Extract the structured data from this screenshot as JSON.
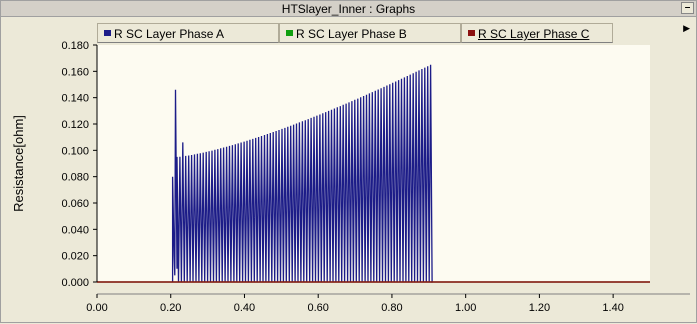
{
  "window": {
    "title": "HTSlayer_Inner : Graphs",
    "min_label": "–"
  },
  "legend": [
    {
      "label": "R SC Layer Phase A",
      "color": "#1c1c88"
    },
    {
      "label": "R SC Layer Phase B",
      "color": "#10a010"
    },
    {
      "label": "R SC Layer Phase C",
      "color": "#8b1010"
    }
  ],
  "chart_data": {
    "type": "line",
    "ylabel": "Resistance[ohm]",
    "xlabel": "",
    "xlim": [
      0.0,
      1.5
    ],
    "ylim": [
      0.0,
      0.18
    ],
    "x_ticks": [
      "0.00",
      "0.20",
      "0.40",
      "0.60",
      "0.80",
      "1.00",
      "1.20",
      "1.40"
    ],
    "y_ticks": [
      "0.000",
      "0.020",
      "0.040",
      "0.060",
      "0.080",
      "0.100",
      "0.120",
      "0.140",
      "0.160",
      "0.180"
    ],
    "series": [
      {
        "name": "R SC Layer Phase A",
        "color": "#1c1c88",
        "description_values": {
          "oscillation_start_x": 0.205,
          "oscillation_end_x": 0.905,
          "spike_x": 0.213,
          "spike_y": 0.146,
          "peak_start_y": 0.095,
          "peak_end_y": 0.165,
          "trough_y": 0.0,
          "cycles": 88
        }
      },
      {
        "name": "R SC Layer Phase B",
        "color": "#10a010",
        "values_const": 0.0
      },
      {
        "name": "R SC Layer Phase C",
        "color": "#8b1010",
        "values_const": 0.0
      }
    ]
  }
}
